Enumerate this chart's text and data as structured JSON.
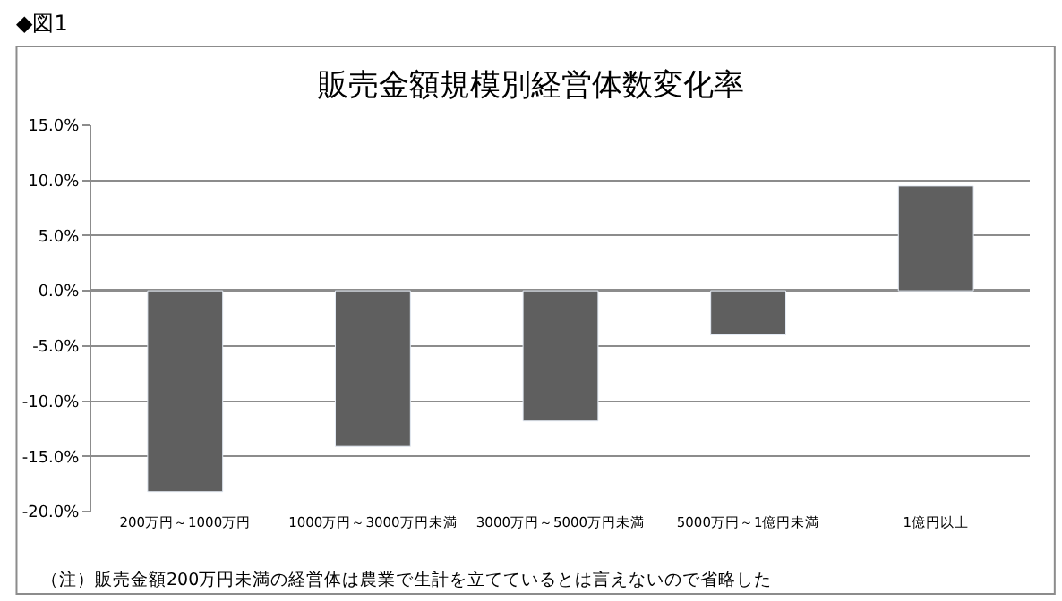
{
  "chart_data": {
    "type": "bar",
    "title": "販売金額規模別経営体数変化率",
    "categories": [
      "200万円～1000万円",
      "1000万円～3000万円未満",
      "3000万円～5000万円未満",
      "5000万円～1億円未満",
      "1億円以上"
    ],
    "values": [
      -18.2,
      -14.1,
      -11.8,
      -4.0,
      9.5
    ],
    "color": "#5f5f5f",
    "ylim": [
      -20,
      15
    ],
    "yticks": [
      {
        "value": -20,
        "label": "-20.0%"
      },
      {
        "value": -15,
        "label": "-15.0%"
      },
      {
        "value": -10,
        "label": "-10.0%"
      },
      {
        "value": -5,
        "label": "-5.0%"
      },
      {
        "value": 0,
        "label": "0.0%"
      },
      {
        "value": 5,
        "label": "5.0%"
      },
      {
        "value": 10,
        "label": "10.0%"
      },
      {
        "value": 15,
        "label": "15.0%"
      }
    ],
    "grid": "y",
    "annotations": [
      "◆図1",
      "（注）販売金額200万円未満の経営体は農業で生計を立てているとは言えないので省略した"
    ]
  }
}
